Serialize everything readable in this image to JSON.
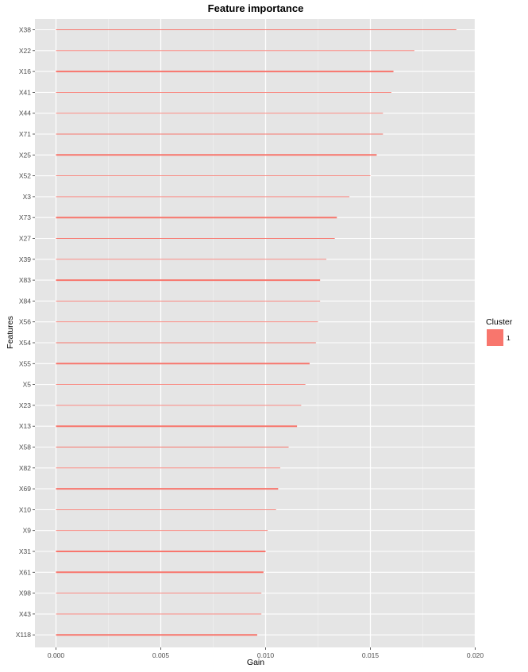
{
  "chart_data": {
    "type": "bar",
    "orientation": "horizontal",
    "title": "Feature importance",
    "xlabel": "Gain",
    "ylabel": "Features",
    "xlim": [
      0,
      0.02
    ],
    "x_ticks": [
      "0.000",
      "0.005",
      "0.010",
      "0.015",
      "0.020"
    ],
    "grid": true,
    "legend": {
      "title": "Cluster",
      "placement": "right",
      "entries": [
        {
          "label": "1",
          "color": "#F8766D"
        }
      ]
    },
    "bar_color": "#F8766D",
    "panel_color": "#E5E5E5",
    "categories": [
      "X38",
      "X22",
      "X16",
      "X41",
      "X44",
      "X71",
      "X25",
      "X52",
      "X3",
      "X73",
      "X27",
      "X39",
      "X83",
      "X84",
      "X56",
      "X54",
      "X55",
      "X5",
      "X23",
      "X13",
      "X58",
      "X82",
      "X69",
      "X10",
      "X9",
      "X31",
      "X61",
      "X98",
      "X43",
      "X118"
    ],
    "values": [
      0.0191,
      0.0171,
      0.0161,
      0.016,
      0.0156,
      0.0156,
      0.0153,
      0.015,
      0.014,
      0.0134,
      0.0133,
      0.0129,
      0.0126,
      0.0126,
      0.0125,
      0.0124,
      0.0121,
      0.0119,
      0.0117,
      0.0115,
      0.0111,
      0.0107,
      0.0106,
      0.0105,
      0.0101,
      0.01,
      0.0099,
      0.0098,
      0.0098,
      0.0096
    ],
    "thick": [
      false,
      false,
      true,
      false,
      false,
      false,
      true,
      false,
      false,
      true,
      false,
      false,
      true,
      false,
      false,
      false,
      true,
      false,
      false,
      true,
      false,
      false,
      true,
      false,
      false,
      true,
      true,
      false,
      false,
      true
    ]
  }
}
